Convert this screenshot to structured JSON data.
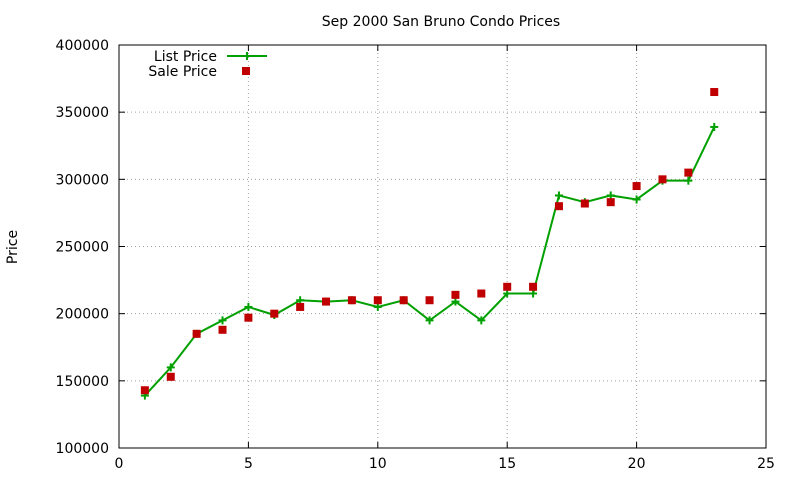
{
  "chart_data": {
    "type": "line",
    "title": "Sep 2000 San Bruno Condo Prices",
    "xlabel": "",
    "ylabel": "Price",
    "xlim": [
      0,
      25
    ],
    "ylim": [
      100000,
      400000
    ],
    "x_ticks": [
      0,
      5,
      10,
      15,
      20,
      25
    ],
    "y_ticks": [
      100000,
      150000,
      200000,
      250000,
      300000,
      350000,
      400000
    ],
    "grid": true,
    "legend_position": "top-left",
    "series": [
      {
        "name": "List Price",
        "style": "line-with-plus-markers",
        "color": "#00a000",
        "x": [
          1,
          2,
          3,
          4,
          5,
          6,
          7,
          8,
          9,
          10,
          11,
          12,
          13,
          14,
          15,
          16,
          17,
          18,
          19,
          20,
          21,
          22,
          23
        ],
        "y": [
          139000,
          160000,
          185000,
          195000,
          205000,
          199000,
          210000,
          209000,
          210000,
          205000,
          210000,
          195000,
          209000,
          195000,
          215000,
          215000,
          288000,
          283000,
          288000,
          285000,
          299000,
          299000,
          339000
        ]
      },
      {
        "name": "Sale Price",
        "style": "square-markers",
        "color": "#c00000",
        "x": [
          1,
          2,
          3,
          4,
          5,
          6,
          7,
          8,
          9,
          10,
          11,
          12,
          13,
          14,
          15,
          16,
          17,
          18,
          19,
          20,
          21,
          22,
          23
        ],
        "y": [
          143000,
          153000,
          185000,
          188000,
          197000,
          200000,
          205000,
          209000,
          210000,
          210000,
          210000,
          210000,
          214000,
          215000,
          220000,
          220000,
          280000,
          282000,
          283000,
          295000,
          300000,
          305000,
          365000
        ]
      }
    ]
  }
}
